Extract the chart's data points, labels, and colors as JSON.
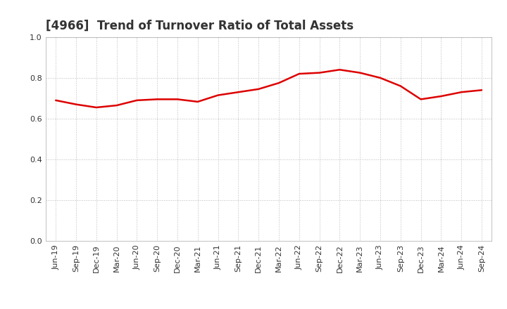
{
  "title": "[4966]  Trend of Turnover Ratio of Total Assets",
  "x_labels": [
    "Jun-19",
    "Sep-19",
    "Dec-19",
    "Mar-20",
    "Jun-20",
    "Sep-20",
    "Dec-20",
    "Mar-21",
    "Jun-21",
    "Sep-21",
    "Dec-21",
    "Mar-22",
    "Jun-22",
    "Sep-22",
    "Dec-22",
    "Mar-23",
    "Jun-23",
    "Sep-23",
    "Dec-23",
    "Mar-24",
    "Jun-24",
    "Sep-24"
  ],
  "y_values": [
    0.69,
    0.67,
    0.655,
    0.665,
    0.69,
    0.695,
    0.695,
    0.683,
    0.715,
    0.73,
    0.745,
    0.775,
    0.82,
    0.825,
    0.84,
    0.825,
    0.8,
    0.76,
    0.695,
    0.71,
    0.73,
    0.74
  ],
  "line_color": "#dd0000",
  "line_width": 1.8,
  "ylim": [
    0.0,
    1.0
  ],
  "yticks": [
    0.0,
    0.2,
    0.4,
    0.6,
    0.8,
    1.0
  ],
  "background_color": "#ffffff",
  "plot_area_color": "#ffffff",
  "grid_color": "#bbbbbb",
  "title_fontsize": 12,
  "tick_fontsize": 8,
  "title_color": "#333333"
}
